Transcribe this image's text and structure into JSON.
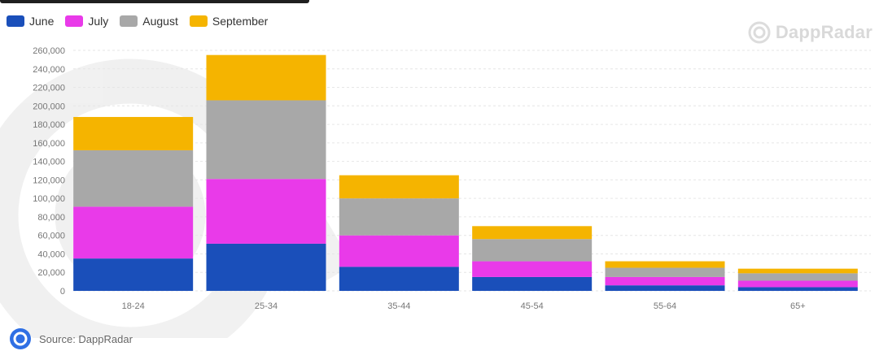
{
  "legend": [
    {
      "label": "June",
      "color": "#1a4fba"
    },
    {
      "label": "July",
      "color": "#e93ae9"
    },
    {
      "label": "August",
      "color": "#a8a8a8"
    },
    {
      "label": "September",
      "color": "#f5b400"
    }
  ],
  "watermark": {
    "text": "DappRadar",
    "icon": "dappradar-logo-icon"
  },
  "source": {
    "text": "Source: DappRadar",
    "icon": "dappradar-logo-icon"
  },
  "chart_data": {
    "type": "bar",
    "stacked": true,
    "categories": [
      "18-24",
      "25-34",
      "35-44",
      "45-54",
      "55-64",
      "65+"
    ],
    "series": [
      {
        "name": "June",
        "color": "#1a4fba",
        "values": [
          35000,
          51000,
          26000,
          15000,
          6000,
          4000
        ]
      },
      {
        "name": "July",
        "color": "#e93ae9",
        "values": [
          56000,
          70000,
          34000,
          17000,
          9000,
          7000
        ]
      },
      {
        "name": "August",
        "color": "#a8a8a8",
        "values": [
          61000,
          85000,
          40000,
          24000,
          10000,
          8000
        ]
      },
      {
        "name": "September",
        "color": "#f5b400",
        "values": [
          36000,
          49000,
          25000,
          14000,
          7000,
          5000
        ]
      }
    ],
    "ylim": [
      0,
      260000
    ],
    "yticks": [
      "0",
      "20,000",
      "40,000",
      "60,000",
      "80,000",
      "100,000",
      "120,000",
      "140,000",
      "160,000",
      "180,000",
      "200,000",
      "220,000",
      "240,000",
      "260,000"
    ],
    "grid": true,
    "legend_position": "top-left"
  }
}
